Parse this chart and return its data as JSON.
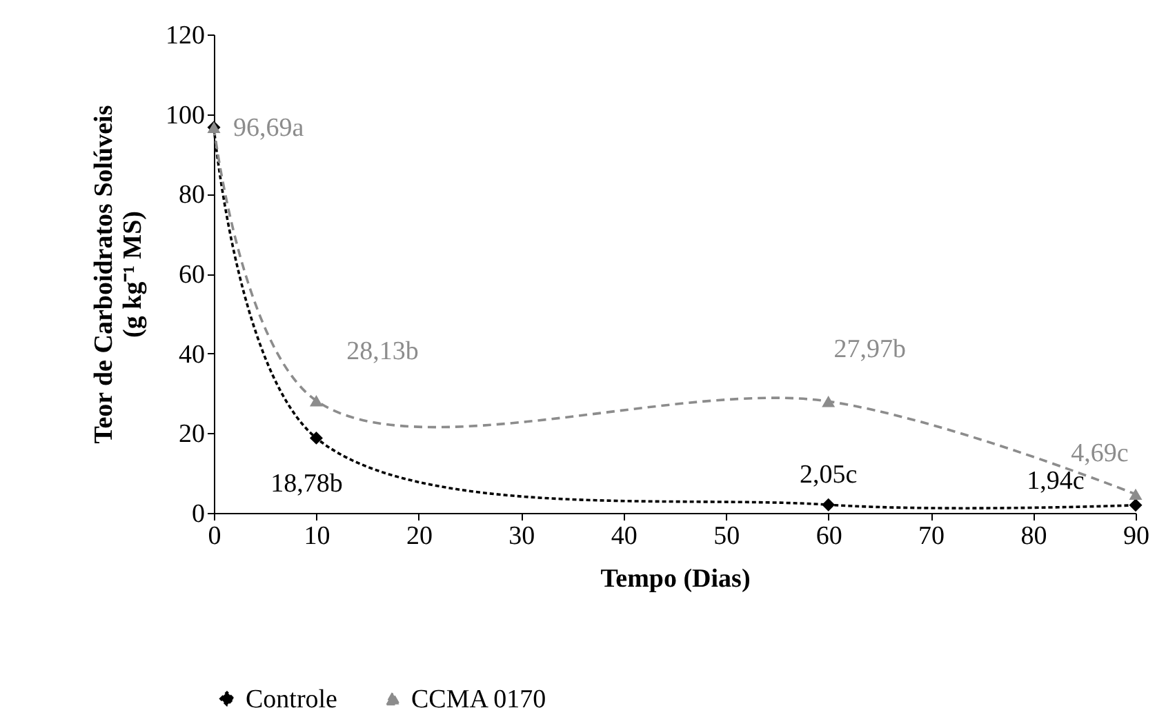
{
  "chart_data": {
    "type": "line",
    "xlabel": "Tempo (Dias)",
    "ylabel": "Teor de Carboidratos Solúveis (g kg⁻¹ MS)",
    "xlim": [
      0,
      90
    ],
    "xticks": [
      0,
      10,
      20,
      30,
      40,
      50,
      60,
      70,
      80,
      90
    ],
    "ylim": [
      0,
      120
    ],
    "yticks": [
      0,
      20,
      40,
      60,
      80,
      100,
      120
    ],
    "grid": false,
    "legend": "bottom",
    "series": [
      {
        "name": "Controle",
        "color": "#000000",
        "x": [
          0,
          10,
          60,
          90
        ],
        "values": [
          96.69,
          18.78,
          2.05,
          1.94
        ],
        "marker": "diamond",
        "line_style": "dashed",
        "value_labels": [
          null,
          "18,78b",
          "2,05c",
          "1,94c"
        ]
      },
      {
        "name": "CCMA 0170",
        "color": "#8c8c8c",
        "x": [
          0,
          10,
          60,
          90
        ],
        "values": [
          96.69,
          28.13,
          27.97,
          4.69
        ],
        "marker": "triangle",
        "line_style": "dashed",
        "value_labels": [
          "96,69a",
          "28,13b",
          "27,97b",
          "4,69c"
        ]
      }
    ]
  }
}
